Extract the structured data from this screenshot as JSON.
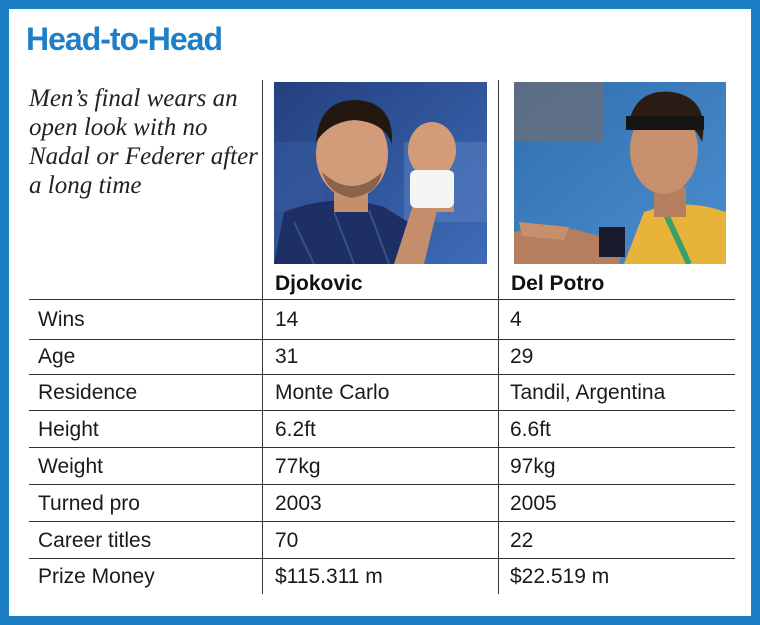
{
  "title": "Head-to-Head",
  "subtitle": "Men’s final wears an open look with no Nadal or Federer after a long time",
  "colors": {
    "accent": "#1c7ec4"
  },
  "players": [
    {
      "name": "Djokovic",
      "photo": "player-photo"
    },
    {
      "name": "Del Potro",
      "photo": "player-photo"
    }
  ],
  "rows": [
    {
      "label": "Wins",
      "p1": "14",
      "p2": "4"
    },
    {
      "label": "Age",
      "p1": "31",
      "p2": "29"
    },
    {
      "label": "Residence",
      "p1": "Monte Carlo",
      "p2": "Tandil, Argentina"
    },
    {
      "label": "Height",
      "p1": "6.2ft",
      "p2": "6.6ft"
    },
    {
      "label": "Weight",
      "p1": "77kg",
      "p2": "97kg"
    },
    {
      "label": "Turned pro",
      "p1": "2003",
      "p2": "2005"
    },
    {
      "label": "Career titles",
      "p1": "70",
      "p2": "22"
    },
    {
      "label": "Prize Money",
      "p1": "$115.311 m",
      "p2": "$22.519 m"
    }
  ]
}
